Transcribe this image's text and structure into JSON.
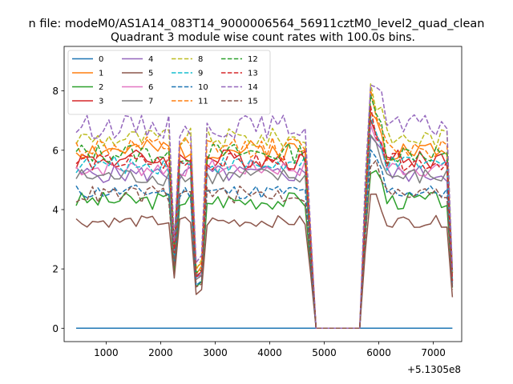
{
  "chart_data": {
    "type": "line",
    "suptitle": "n file: modeM0/AS1A14_083T14_9000006564_56911cztM0_level2_quad_clean",
    "title": "Quadrant 3 module wise count rates with 100.0s bins.",
    "xlabel": "",
    "ylabel": "",
    "x_offset_label": "+5.1305e8",
    "xlim": [
      230,
      7520
    ],
    "ylim": [
      -0.45,
      9.5
    ],
    "xticks": [
      1000,
      2000,
      3000,
      4000,
      5000,
      6000,
      7000
    ],
    "yticks": [
      0,
      2,
      4,
      6,
      8
    ],
    "legend_loc": "upper left",
    "series": [
      {
        "name": "0",
        "color": "#1f77b4",
        "style": "solid",
        "base": 0,
        "amp": 0,
        "seed": 1
      },
      {
        "name": "1",
        "color": "#ff7f0e",
        "style": "solid",
        "base": 6.0,
        "amp": 0.35,
        "seed": 2
      },
      {
        "name": "2",
        "color": "#2ca02c",
        "style": "solid",
        "base": 4.3,
        "amp": 0.3,
        "seed": 3
      },
      {
        "name": "3",
        "color": "#d62728",
        "style": "solid",
        "base": 5.7,
        "amp": 0.35,
        "seed": 4
      },
      {
        "name": "4",
        "color": "#9467bd",
        "style": "solid",
        "base": 5.2,
        "amp": 0.3,
        "seed": 5
      },
      {
        "name": "5",
        "color": "#8c564b",
        "style": "solid",
        "base": 3.6,
        "amp": 0.2,
        "seed": 6
      },
      {
        "name": "6",
        "color": "#e377c2",
        "style": "solid",
        "base": 5.4,
        "amp": 0.3,
        "seed": 7
      },
      {
        "name": "7",
        "color": "#7f7f7f",
        "style": "solid",
        "base": 5.1,
        "amp": 0.3,
        "seed": 8
      },
      {
        "name": "8",
        "color": "#bcbd22",
        "style": "dashed",
        "base": 6.4,
        "amp": 0.35,
        "seed": 9
      },
      {
        "name": "9",
        "color": "#17becf",
        "style": "dashed",
        "base": 5.5,
        "amp": 0.3,
        "seed": 10
      },
      {
        "name": "10",
        "color": "#1f77b4",
        "style": "dashed",
        "base": 4.6,
        "amp": 0.25,
        "seed": 11
      },
      {
        "name": "11",
        "color": "#ff7f0e",
        "style": "dashed",
        "base": 6.1,
        "amp": 0.35,
        "seed": 12
      },
      {
        "name": "12",
        "color": "#2ca02c",
        "style": "dashed",
        "base": 5.9,
        "amp": 0.35,
        "seed": 13
      },
      {
        "name": "13",
        "color": "#d62728",
        "style": "dashed",
        "base": 5.6,
        "amp": 0.3,
        "seed": 14
      },
      {
        "name": "14",
        "color": "#9467bd",
        "style": "dashed",
        "base": 6.8,
        "amp": 0.4,
        "seed": 15
      },
      {
        "name": "15",
        "color": "#8c564b",
        "style": "dashed",
        "base": 4.5,
        "amp": 0.3,
        "seed": 16
      }
    ]
  }
}
